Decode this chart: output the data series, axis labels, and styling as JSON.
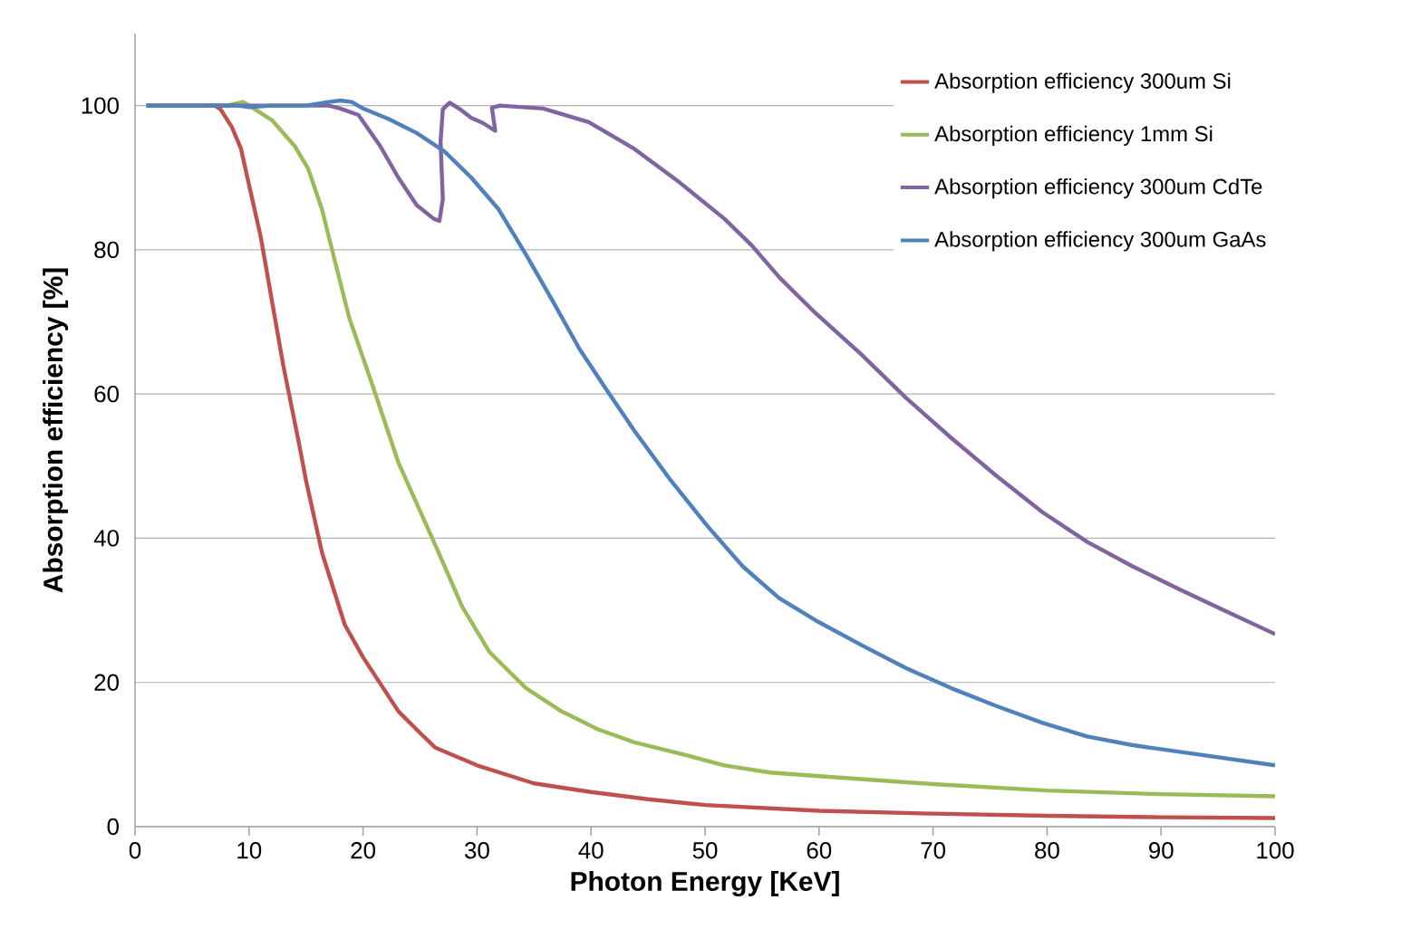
{
  "chart_data": {
    "type": "line",
    "xlabel": "Photon Energy [KeV]",
    "ylabel": "Absorption efficiency [%]",
    "xlim": [
      0,
      100
    ],
    "ylim": [
      0,
      110
    ],
    "xticks": [
      0,
      10,
      20,
      30,
      40,
      50,
      60,
      70,
      80,
      90,
      100
    ],
    "yticks": [
      0,
      20,
      40,
      60,
      80,
      100
    ],
    "grid": "y",
    "legend": "top right",
    "line_style": "solid",
    "marker": "none",
    "series": [
      {
        "name": "Absorption efficiency 300um Si",
        "color": "#c0504d",
        "x": [
          1,
          7,
          7.5,
          8.5,
          9.3,
          10,
          11,
          12,
          13,
          14.4,
          15,
          16.4,
          17,
          18.4,
          20,
          23.1,
          25,
          26.3,
          30,
          35,
          40,
          45,
          50,
          60,
          70,
          80,
          90,
          100
        ],
        "values": [
          100,
          100,
          99.5,
          97,
          94,
          89,
          82,
          73,
          64,
          53,
          48,
          38,
          35,
          28,
          23.5,
          16,
          13,
          11,
          8.5,
          6,
          4.8,
          3.8,
          3,
          2.2,
          1.8,
          1.5,
          1.3,
          1.2
        ]
      },
      {
        "name": "Absorption efficiency 1mm Si",
        "color": "#9bbb59",
        "x": [
          1,
          5,
          8,
          9.5,
          10,
          12,
          14,
          15.2,
          16.4,
          17.6,
          18.8,
          20.7,
          23.1,
          26.3,
          28.7,
          31.1,
          34.3,
          37.4,
          40.6,
          43.8,
          48.6,
          51.7,
          55.7,
          60,
          70,
          80,
          90,
          100
        ],
        "values": [
          100,
          100,
          100,
          100.5,
          100,
          98,
          94.4,
          91.2,
          85.6,
          78,
          70.5,
          61.8,
          50.5,
          39.2,
          30.5,
          24.2,
          19.2,
          16,
          13.5,
          11.7,
          9.8,
          8.5,
          7.5,
          7,
          5.9,
          5,
          4.5,
          4.2
        ]
      },
      {
        "name": "Absorption efficiency 300um CdTe",
        "color": "#8064a2",
        "x": [
          1,
          10,
          15,
          17,
          18,
          19.6,
          21.5,
          23.1,
          24.7,
          26.2,
          26.7,
          27,
          26.8,
          27,
          27.6,
          28.5,
          29.5,
          30.5,
          31.6,
          31.3,
          32,
          35.8,
          39.8,
          43.8,
          47.8,
          51.7,
          54.1,
          56.5,
          59.7,
          63.7,
          67.6,
          71.6,
          75.6,
          79.6,
          83.5,
          87.5,
          91.5,
          95.5,
          100
        ],
        "values": [
          100,
          100,
          100,
          100,
          99.6,
          98.7,
          94.4,
          90,
          86.2,
          84.3,
          84,
          87,
          95,
          99.5,
          100.4,
          99.5,
          98.3,
          97.6,
          96.5,
          99.7,
          100,
          99.6,
          97.7,
          94,
          89.3,
          84.3,
          80.6,
          76.2,
          71.2,
          65.5,
          59.5,
          53.9,
          48.6,
          43.6,
          39.5,
          36.1,
          33,
          30,
          26.7
        ]
      },
      {
        "name": "Absorption efficiency 300um GaAs",
        "color": "#4f81bd",
        "x": [
          1,
          5,
          9,
          10,
          12,
          15,
          17,
          18,
          19,
          20,
          22.3,
          24.7,
          27.1,
          29.5,
          31.9,
          34.3,
          36.6,
          39,
          41.4,
          43.8,
          47,
          50.2,
          53.3,
          56.5,
          59.7,
          63.7,
          67.6,
          71.6,
          75.6,
          79.6,
          83.5,
          87.5,
          91.5,
          100
        ],
        "values": [
          100,
          100,
          100,
          99.8,
          100,
          100,
          100.5,
          100.7,
          100.5,
          99.6,
          98.1,
          96.2,
          93.7,
          90,
          85.6,
          79.3,
          73,
          66.2,
          60.5,
          54.9,
          48,
          41.7,
          36.1,
          31.7,
          28.6,
          25.2,
          22,
          19.2,
          16.7,
          14.4,
          12.5,
          11.3,
          10.4,
          8.5
        ]
      }
    ]
  }
}
